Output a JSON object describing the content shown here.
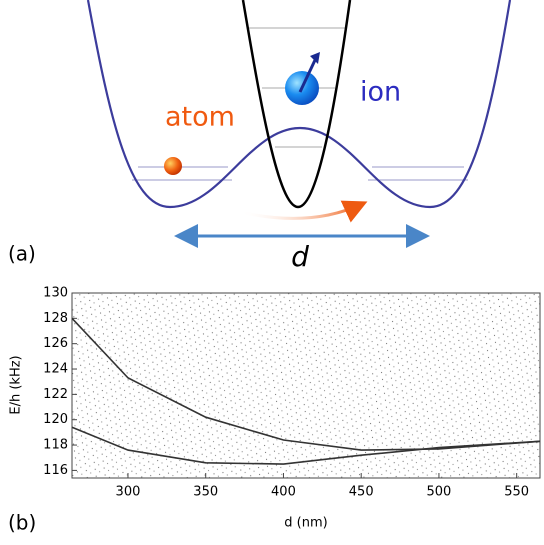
{
  "panel_a": {
    "label": "(a)",
    "atom": "atom",
    "ion": "ion",
    "distance": "d"
  },
  "chart_data": {
    "type": "line",
    "panel_label": "(b)",
    "x_label": "d (nm)",
    "y_label": "E/h (kHz)",
    "xlim": [
      264,
      565
    ],
    "ylim": [
      115.4,
      130
    ],
    "xticks": [
      300,
      350,
      400,
      450,
      500,
      550
    ],
    "yticks": [
      116,
      118,
      120,
      122,
      124,
      126,
      128,
      130
    ],
    "x": [
      264,
      300,
      350,
      400,
      450,
      500,
      565
    ],
    "series": [
      {
        "color": "#333333",
        "values": [
          128,
          123.3,
          120.2,
          118.4,
          117.6,
          117.7,
          118.3
        ]
      },
      {
        "color": "#333333",
        "values": [
          119.4,
          117.6,
          116.6,
          116.5,
          117.2,
          117.8,
          118.3
        ]
      }
    ]
  }
}
